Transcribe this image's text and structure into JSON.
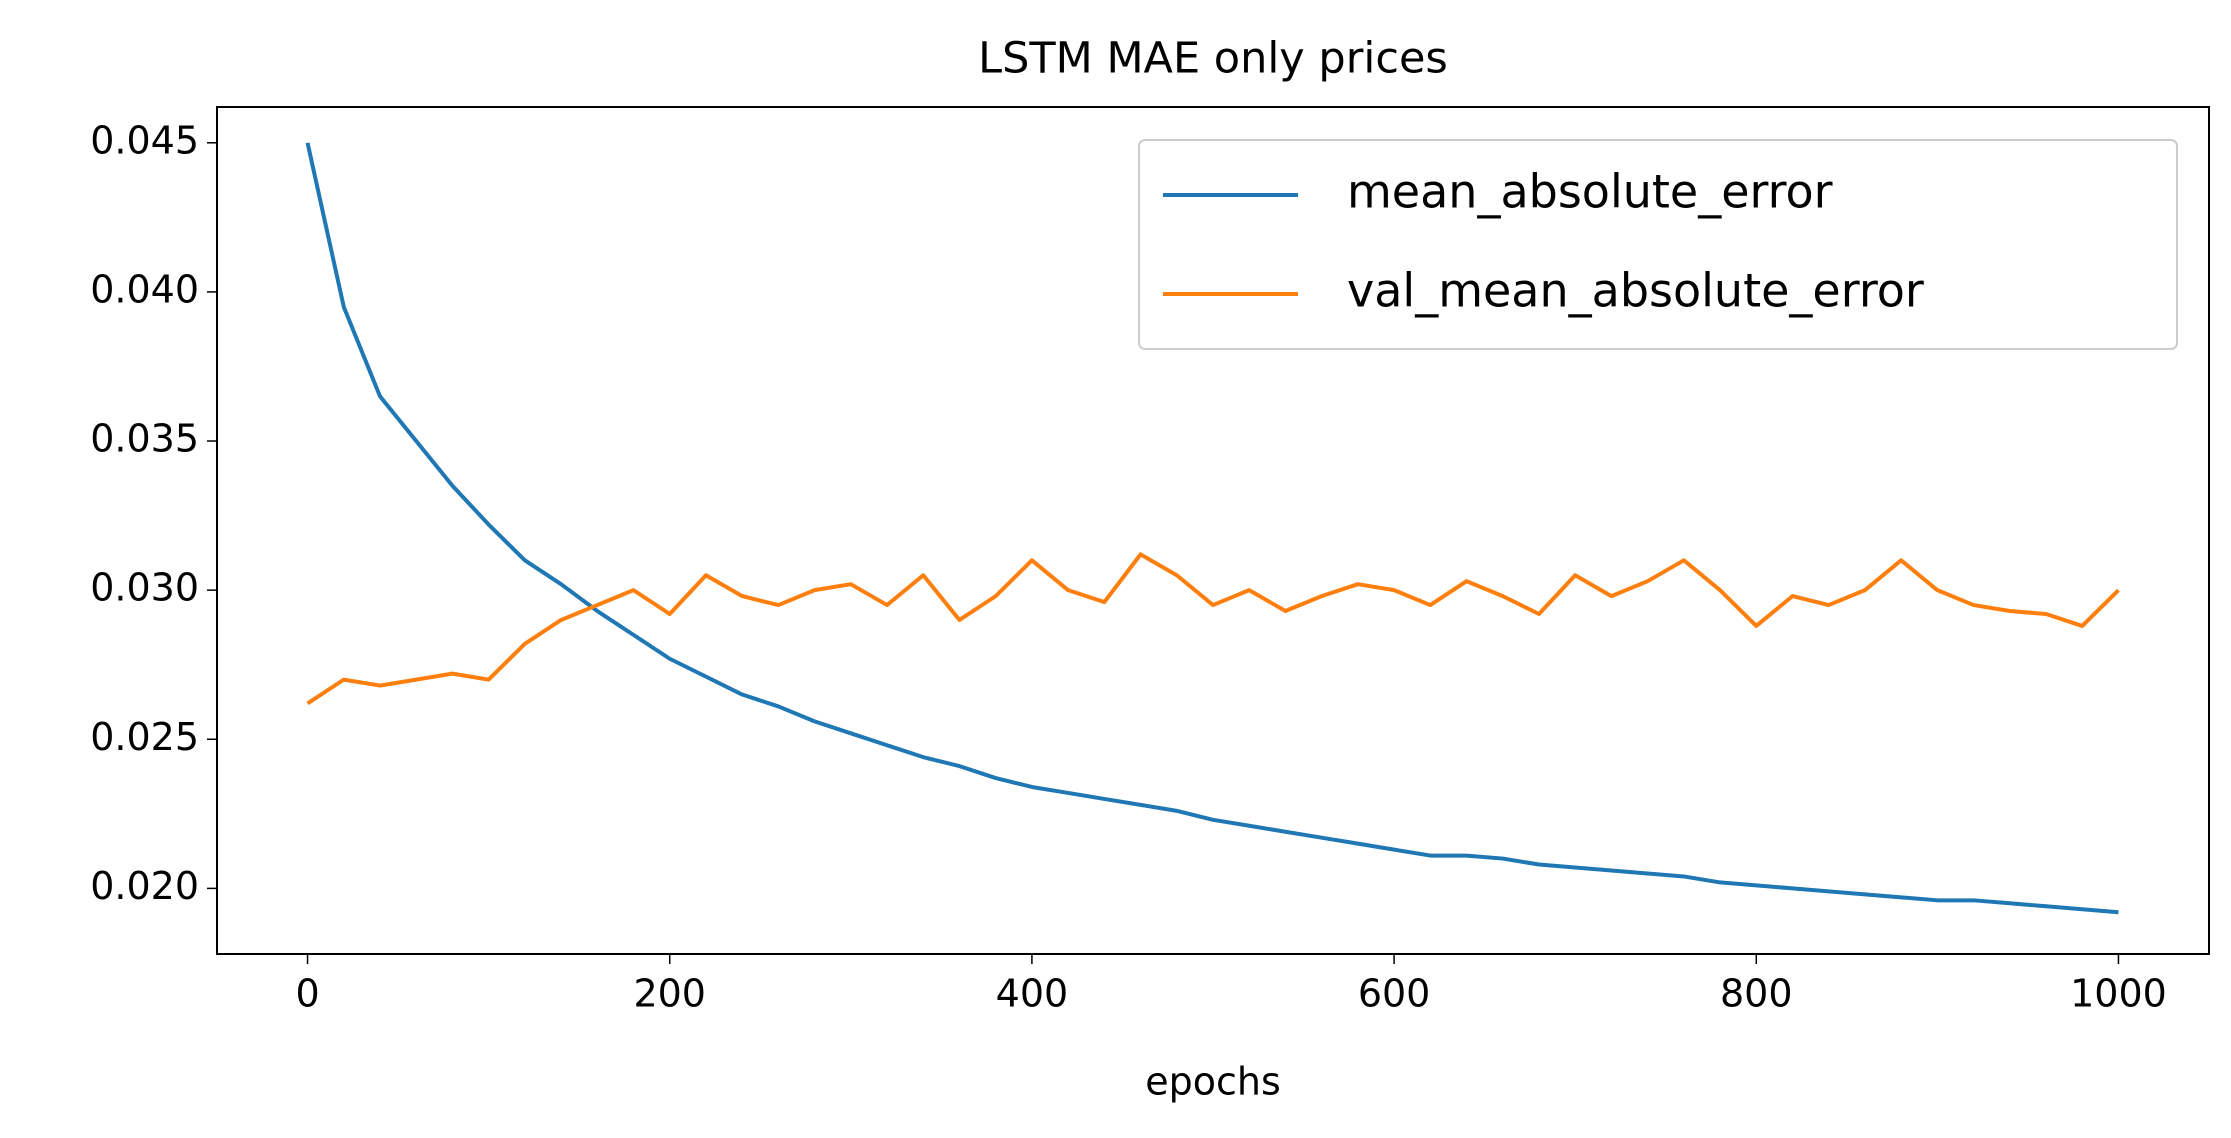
{
  "chart_data": {
    "type": "line",
    "title": "LSTM MAE only prices",
    "x_label": "epochs",
    "x": [
      0,
      20,
      40,
      60,
      80,
      100,
      120,
      140,
      160,
      180,
      200,
      220,
      240,
      260,
      280,
      300,
      320,
      340,
      360,
      380,
      400,
      420,
      440,
      460,
      480,
      500,
      520,
      540,
      560,
      580,
      600,
      620,
      640,
      660,
      680,
      700,
      720,
      740,
      760,
      780,
      800,
      820,
      840,
      860,
      880,
      900,
      920,
      940,
      960,
      980,
      1000
    ],
    "series": [
      {
        "name": "mean_absolute_error",
        "color": "#1f77b4",
        "values": [
          0.045,
          0.0395,
          0.0365,
          0.035,
          0.0335,
          0.0322,
          0.031,
          0.0302,
          0.0293,
          0.0285,
          0.0277,
          0.0271,
          0.0265,
          0.0261,
          0.0256,
          0.0252,
          0.0248,
          0.0244,
          0.0241,
          0.0237,
          0.0234,
          0.0232,
          0.023,
          0.0228,
          0.0226,
          0.0223,
          0.0221,
          0.0219,
          0.0217,
          0.0215,
          0.0213,
          0.0211,
          0.0211,
          0.021,
          0.0208,
          0.0207,
          0.0206,
          0.0205,
          0.0204,
          0.0202,
          0.0201,
          0.02,
          0.0199,
          0.0198,
          0.0197,
          0.0196,
          0.0196,
          0.0195,
          0.0194,
          0.0193,
          0.0192
        ]
      },
      {
        "name": "val_mean_absolute_error",
        "color": "#ff7f0e",
        "values": [
          0.0262,
          0.027,
          0.0268,
          0.027,
          0.0272,
          0.027,
          0.0282,
          0.029,
          0.0295,
          0.03,
          0.0292,
          0.0305,
          0.0298,
          0.0295,
          0.03,
          0.0302,
          0.0295,
          0.0305,
          0.029,
          0.0298,
          0.031,
          0.03,
          0.0296,
          0.0312,
          0.0305,
          0.0295,
          0.03,
          0.0293,
          0.0298,
          0.0302,
          0.03,
          0.0295,
          0.0303,
          0.0298,
          0.0292,
          0.0305,
          0.0298,
          0.0303,
          0.031,
          0.03,
          0.0288,
          0.0298,
          0.0295,
          0.03,
          0.031,
          0.03,
          0.0295,
          0.0293,
          0.0292,
          0.0288,
          0.03
        ]
      }
    ],
    "xlim": [
      -50,
      1050
    ],
    "xticks": [
      0,
      200,
      400,
      600,
      800,
      1000
    ],
    "ylim": [
      0.0178,
      0.0462
    ],
    "yticks": [
      {
        "value": 0.02,
        "label": "0.020"
      },
      {
        "value": 0.025,
        "label": "0.025"
      },
      {
        "value": 0.03,
        "label": "0.030"
      },
      {
        "value": 0.035,
        "label": "0.035"
      },
      {
        "value": 0.04,
        "label": "0.040"
      },
      {
        "value": 0.045,
        "label": "0.045"
      }
    ],
    "legend": "upper right"
  }
}
